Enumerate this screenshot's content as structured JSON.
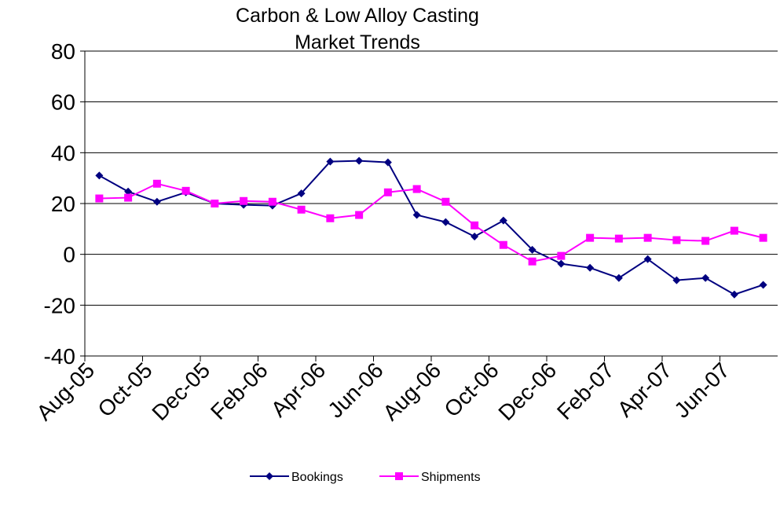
{
  "chart_data": {
    "type": "line",
    "title": [
      "Carbon & Low Alloy Casting",
      "Market Trends"
    ],
    "categories": [
      "Aug-05",
      null,
      "Oct-05",
      null,
      "Dec-05",
      null,
      "Feb-06",
      null,
      "Apr-06",
      null,
      "Jun-06",
      null,
      "Aug-06",
      null,
      "Oct-06",
      null,
      "Dec-06",
      null,
      "Feb-07",
      null,
      "Apr-07",
      null,
      "Jun-07",
      null
    ],
    "series": [
      {
        "name": "Bookings",
        "color": "#000080",
        "marker": "diamond",
        "values": [
          31,
          24.7,
          20.7,
          24.4,
          20,
          19.5,
          19.2,
          24,
          36.5,
          36.8,
          36.2,
          15.5,
          12.7,
          7,
          13.3,
          1.8,
          -3.7,
          -5.3,
          -9.3,
          -1.9,
          -10.2,
          -9.3,
          -15.8,
          -12
        ]
      },
      {
        "name": "Shipments",
        "color": "#FF00FF",
        "marker": "square",
        "values": [
          22,
          22.3,
          27.8,
          25,
          20,
          21,
          20.7,
          17.6,
          14.2,
          15.5,
          24.4,
          25.7,
          20.7,
          11.4,
          3.7,
          -2.8,
          -0.6,
          6.5,
          6.2,
          6.5,
          5.6,
          5.3,
          9.3,
          6.5
        ]
      }
    ],
    "ylim": [
      -40,
      80
    ],
    "yticks": [
      -40,
      -20,
      0,
      20,
      40,
      60,
      80
    ],
    "grid": true,
    "legend": "bottom"
  }
}
